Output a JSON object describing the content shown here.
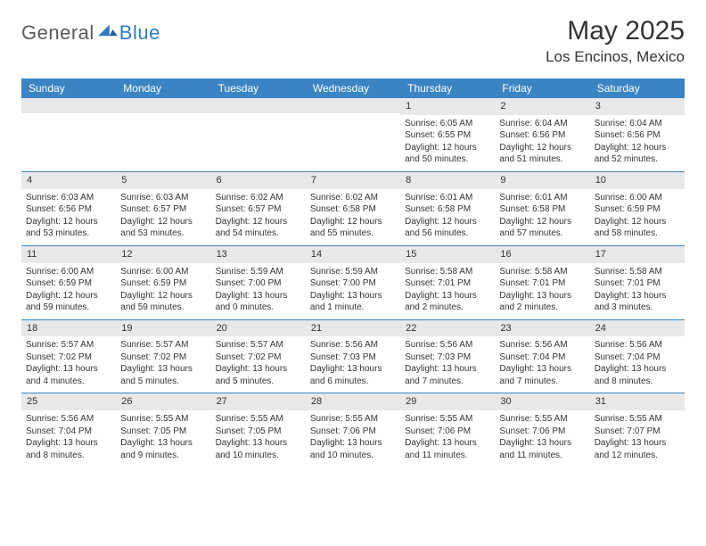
{
  "logo": {
    "general": "General",
    "blue": "Blue"
  },
  "title": "May 2025",
  "location": "Los Encinos, Mexico",
  "colors": {
    "header_bg": "#3b84c4",
    "header_text": "#ffffff",
    "daynum_bg": "#e8e8e8",
    "week_divider": "#3b84c4",
    "logo_gray": "#5a5a5a",
    "logo_blue": "#2f7bbf",
    "body_text": "#333333",
    "background": "#ffffff"
  },
  "fonts": {
    "title_size_pt": 22,
    "location_size_pt": 13,
    "header_cell_size_pt": 9,
    "daynum_size_pt": 8,
    "body_size_pt": 7
  },
  "weekdays": [
    "Sunday",
    "Monday",
    "Tuesday",
    "Wednesday",
    "Thursday",
    "Friday",
    "Saturday"
  ],
  "layout": {
    "week_start": "Sunday",
    "columns": 7,
    "rows": 5
  },
  "first_day_column": 4,
  "days": [
    {
      "n": 1,
      "sunrise": "6:05 AM",
      "sunset": "6:55 PM",
      "daylight": "12 hours and 50 minutes."
    },
    {
      "n": 2,
      "sunrise": "6:04 AM",
      "sunset": "6:56 PM",
      "daylight": "12 hours and 51 minutes."
    },
    {
      "n": 3,
      "sunrise": "6:04 AM",
      "sunset": "6:56 PM",
      "daylight": "12 hours and 52 minutes."
    },
    {
      "n": 4,
      "sunrise": "6:03 AM",
      "sunset": "6:56 PM",
      "daylight": "12 hours and 53 minutes."
    },
    {
      "n": 5,
      "sunrise": "6:03 AM",
      "sunset": "6:57 PM",
      "daylight": "12 hours and 53 minutes."
    },
    {
      "n": 6,
      "sunrise": "6:02 AM",
      "sunset": "6:57 PM",
      "daylight": "12 hours and 54 minutes."
    },
    {
      "n": 7,
      "sunrise": "6:02 AM",
      "sunset": "6:58 PM",
      "daylight": "12 hours and 55 minutes."
    },
    {
      "n": 8,
      "sunrise": "6:01 AM",
      "sunset": "6:58 PM",
      "daylight": "12 hours and 56 minutes."
    },
    {
      "n": 9,
      "sunrise": "6:01 AM",
      "sunset": "6:58 PM",
      "daylight": "12 hours and 57 minutes."
    },
    {
      "n": 10,
      "sunrise": "6:00 AM",
      "sunset": "6:59 PM",
      "daylight": "12 hours and 58 minutes."
    },
    {
      "n": 11,
      "sunrise": "6:00 AM",
      "sunset": "6:59 PM",
      "daylight": "12 hours and 59 minutes."
    },
    {
      "n": 12,
      "sunrise": "6:00 AM",
      "sunset": "6:59 PM",
      "daylight": "12 hours and 59 minutes."
    },
    {
      "n": 13,
      "sunrise": "5:59 AM",
      "sunset": "7:00 PM",
      "daylight": "13 hours and 0 minutes."
    },
    {
      "n": 14,
      "sunrise": "5:59 AM",
      "sunset": "7:00 PM",
      "daylight": "13 hours and 1 minute."
    },
    {
      "n": 15,
      "sunrise": "5:58 AM",
      "sunset": "7:01 PM",
      "daylight": "13 hours and 2 minutes."
    },
    {
      "n": 16,
      "sunrise": "5:58 AM",
      "sunset": "7:01 PM",
      "daylight": "13 hours and 2 minutes."
    },
    {
      "n": 17,
      "sunrise": "5:58 AM",
      "sunset": "7:01 PM",
      "daylight": "13 hours and 3 minutes."
    },
    {
      "n": 18,
      "sunrise": "5:57 AM",
      "sunset": "7:02 PM",
      "daylight": "13 hours and 4 minutes."
    },
    {
      "n": 19,
      "sunrise": "5:57 AM",
      "sunset": "7:02 PM",
      "daylight": "13 hours and 5 minutes."
    },
    {
      "n": 20,
      "sunrise": "5:57 AM",
      "sunset": "7:02 PM",
      "daylight": "13 hours and 5 minutes."
    },
    {
      "n": 21,
      "sunrise": "5:56 AM",
      "sunset": "7:03 PM",
      "daylight": "13 hours and 6 minutes."
    },
    {
      "n": 22,
      "sunrise": "5:56 AM",
      "sunset": "7:03 PM",
      "daylight": "13 hours and 7 minutes."
    },
    {
      "n": 23,
      "sunrise": "5:56 AM",
      "sunset": "7:04 PM",
      "daylight": "13 hours and 7 minutes."
    },
    {
      "n": 24,
      "sunrise": "5:56 AM",
      "sunset": "7:04 PM",
      "daylight": "13 hours and 8 minutes."
    },
    {
      "n": 25,
      "sunrise": "5:56 AM",
      "sunset": "7:04 PM",
      "daylight": "13 hours and 8 minutes."
    },
    {
      "n": 26,
      "sunrise": "5:55 AM",
      "sunset": "7:05 PM",
      "daylight": "13 hours and 9 minutes."
    },
    {
      "n": 27,
      "sunrise": "5:55 AM",
      "sunset": "7:05 PM",
      "daylight": "13 hours and 10 minutes."
    },
    {
      "n": 28,
      "sunrise": "5:55 AM",
      "sunset": "7:06 PM",
      "daylight": "13 hours and 10 minutes."
    },
    {
      "n": 29,
      "sunrise": "5:55 AM",
      "sunset": "7:06 PM",
      "daylight": "13 hours and 11 minutes."
    },
    {
      "n": 30,
      "sunrise": "5:55 AM",
      "sunset": "7:06 PM",
      "daylight": "13 hours and 11 minutes."
    },
    {
      "n": 31,
      "sunrise": "5:55 AM",
      "sunset": "7:07 PM",
      "daylight": "13 hours and 12 minutes."
    }
  ],
  "labels": {
    "sunrise": "Sunrise:",
    "sunset": "Sunset:",
    "daylight": "Daylight:"
  }
}
